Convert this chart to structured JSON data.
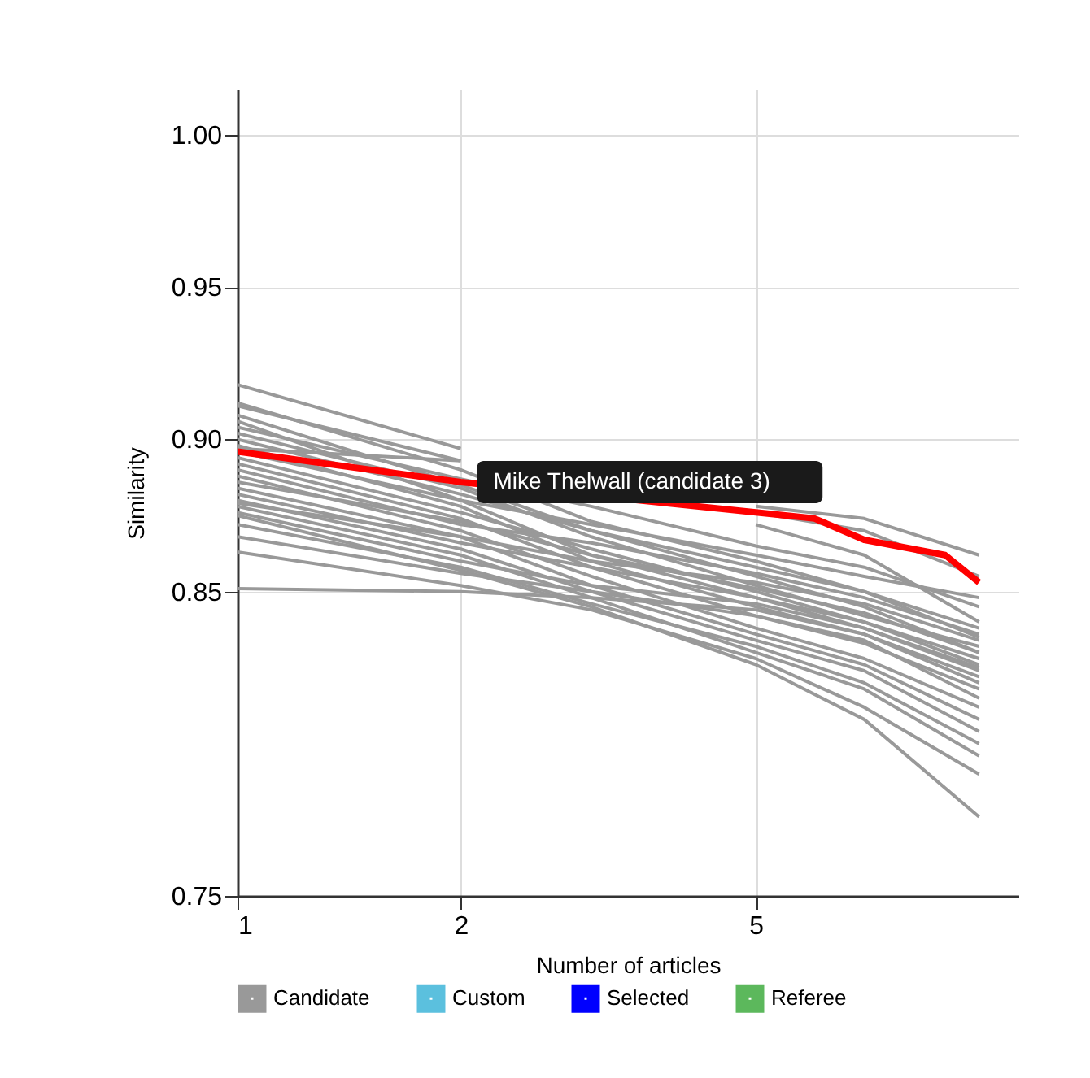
{
  "chart_data": {
    "type": "line",
    "xlabel": "Number of articles",
    "ylabel": "Similarity",
    "x": [
      1,
      2,
      3,
      5,
      7,
      10
    ],
    "xlim": [
      1,
      11.3
    ],
    "xticks": [
      1,
      2,
      5
    ],
    "log": "x",
    "ylim": [
      0.75,
      1.015
    ],
    "yticks": [
      {
        "value": 0.75,
        "label": "0.75"
      },
      {
        "value": 0.85,
        "label": "0.85"
      },
      {
        "value": 0.9,
        "label": "0.90"
      },
      {
        "value": 0.95,
        "label": "0.95"
      },
      {
        "value": 1.0,
        "label": "1.00"
      }
    ],
    "grid": true,
    "legend": "bottom",
    "annotations": [
      {
        "text": "Mike Thelwall (candidate 3)",
        "x": 2,
        "y": 0.886
      }
    ],
    "series": [
      {
        "name": "Candidate",
        "color": "#999999",
        "values": [
          0.918,
          0.897,
          null,
          0.872,
          0.862,
          0.84
        ]
      },
      {
        "color": "#999999",
        "values": [
          0.912,
          0.89,
          0.873,
          0.86,
          0.85,
          0.835
        ]
      },
      {
        "color": "#999999",
        "values": [
          0.911,
          0.893,
          null,
          0.878,
          0.874,
          0.862
        ]
      },
      {
        "color": "#999999",
        "values": [
          0.908,
          0.885,
          0.87,
          0.855,
          0.845,
          0.83
        ]
      },
      {
        "color": "#999999",
        "values": [
          0.906,
          0.88,
          0.862,
          0.848,
          0.838,
          0.825
        ]
      },
      {
        "color": "#999999",
        "values": [
          0.904,
          0.887,
          0.878,
          0.865,
          0.858,
          0.845
        ]
      },
      {
        "color": "#999999",
        "values": [
          0.902,
          0.884,
          0.868,
          0.852,
          0.842,
          0.832
        ]
      },
      {
        "color": "#999999",
        "values": [
          0.9,
          0.882,
          0.87,
          0.858,
          0.85,
          0.838
        ]
      },
      {
        "color": "#999999",
        "values": [
          0.898,
          0.878,
          0.86,
          0.845,
          0.836,
          0.822
        ]
      },
      {
        "color": "#999999",
        "values": [
          0.897,
          0.893,
          null,
          0.876,
          0.87,
          0.855
        ]
      },
      {
        "color": "#999999",
        "values": [
          0.896,
          0.88,
          0.872,
          0.862,
          0.855,
          0.848
        ]
      },
      {
        "color": "#999999",
        "values": [
          0.894,
          0.876,
          0.864,
          0.85,
          0.84,
          0.828
        ]
      },
      {
        "color": "#999999",
        "values": [
          0.892,
          0.874,
          0.858,
          0.842,
          0.833,
          0.818
        ]
      },
      {
        "color": "#999999",
        "values": [
          0.89,
          0.872,
          0.866,
          0.856,
          0.848,
          0.836
        ]
      },
      {
        "color": "#999999",
        "values": [
          0.888,
          0.87,
          0.855,
          0.838,
          0.828,
          0.812
        ]
      },
      {
        "color": "#999999",
        "values": [
          0.886,
          0.873,
          0.862,
          0.851,
          0.843,
          0.83
        ]
      },
      {
        "color": "#999999",
        "values": [
          0.884,
          0.868,
          0.852,
          0.836,
          0.826,
          0.808
        ]
      },
      {
        "color": "#999999",
        "values": [
          0.882,
          0.866,
          0.858,
          0.848,
          0.84,
          0.826
        ]
      },
      {
        "color": "#999999",
        "values": [
          0.88,
          0.864,
          0.85,
          0.834,
          0.824,
          0.804
        ]
      },
      {
        "color": "#999999",
        "values": [
          0.879,
          0.868,
          0.86,
          0.853,
          0.846,
          0.834
        ]
      },
      {
        "color": "#999999",
        "values": [
          0.878,
          0.862,
          0.848,
          0.83,
          0.818,
          0.796
        ]
      },
      {
        "color": "#999999",
        "values": [
          0.876,
          0.86,
          0.852,
          0.846,
          0.838,
          0.824
        ]
      },
      {
        "color": "#999999",
        "values": [
          0.875,
          0.857,
          0.845,
          0.826,
          0.808,
          0.776
        ]
      },
      {
        "color": "#999999",
        "values": [
          0.872,
          0.858,
          0.846,
          0.832,
          0.82,
          0.8
        ]
      },
      {
        "color": "#999999",
        "values": [
          0.868,
          0.856,
          0.85,
          0.842,
          0.834,
          0.815
        ]
      },
      {
        "color": "#999999",
        "values": [
          0.863,
          0.852,
          0.844,
          0.828,
          0.812,
          0.79
        ]
      },
      {
        "color": "#999999",
        "values": [
          0.851,
          0.85,
          0.848,
          0.844,
          0.836,
          0.82
        ]
      },
      {
        "color": "#ff0000",
        "x": [
          1,
          2,
          5,
          6,
          7,
          9,
          10
        ],
        "values": [
          0.896,
          0.886,
          0.876,
          0.874,
          0.867,
          0.862,
          0.853
        ]
      },
      {
        "name": "Custom",
        "color": "#5bc0de",
        "values": [
          null,
          null,
          null,
          null,
          null,
          null
        ]
      },
      {
        "name": "Selected",
        "color": "#0000ff",
        "values": [
          null,
          null,
          null,
          null,
          null,
          null
        ]
      },
      {
        "name": "Referee",
        "color": "#5cb85c",
        "values": [
          null,
          null,
          null,
          null,
          null,
          null
        ]
      }
    ]
  }
}
